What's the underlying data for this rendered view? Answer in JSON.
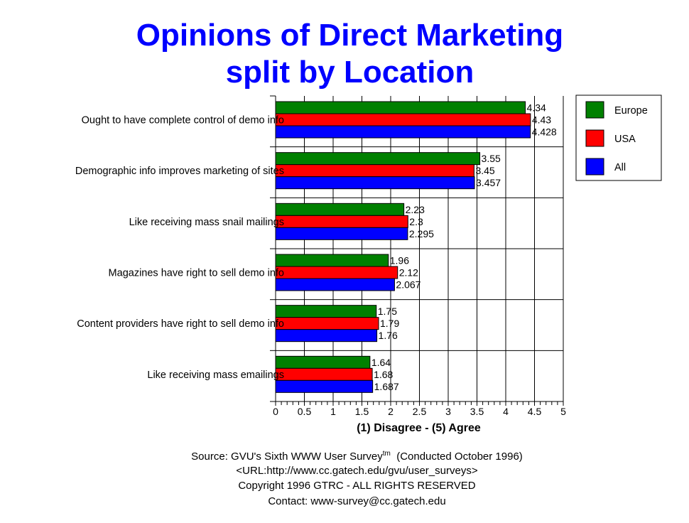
{
  "title_line1": "Opinions of Direct Marketing",
  "title_line2": "split by Location",
  "chart_data": {
    "type": "bar",
    "orientation": "horizontal",
    "categories": [
      "Ought to have complete control of demo info",
      "Demographic info improves marketing of sites",
      "Like receiving mass snail mailings",
      "Magazines have right to sell demo info",
      "Content providers have right to sell demo info",
      "Like receiving mass emailings"
    ],
    "series": [
      {
        "name": "Europe",
        "color": "#008000",
        "values": [
          4.34,
          3.55,
          2.23,
          1.96,
          1.75,
          1.64
        ],
        "labels": [
          "4.34",
          "3.55",
          "2.23",
          "1.96",
          "1.75",
          "1.64"
        ]
      },
      {
        "name": "USA",
        "color": "#ff0000",
        "values": [
          4.43,
          3.45,
          2.3,
          2.12,
          1.79,
          1.68
        ],
        "labels": [
          "4.43",
          "3.45",
          "2.3",
          "2.12",
          "1.79",
          "1.68"
        ]
      },
      {
        "name": "All",
        "color": "#0000ff",
        "values": [
          4.428,
          3.457,
          2.295,
          2.067,
          1.76,
          1.687
        ],
        "labels": [
          "4.428",
          "3.457",
          "2.295",
          "2.067",
          "1.76",
          "1.687"
        ]
      }
    ],
    "xlabel": "(1) Disagree - (5) Agree",
    "xlim": [
      0,
      5
    ],
    "xticks": [
      "0",
      "0.5",
      "1",
      "1.5",
      "2",
      "2.5",
      "3",
      "3.5",
      "4",
      "4.5",
      "5"
    ],
    "grid": true,
    "legend_position": "top-right"
  },
  "footer": {
    "source_prefix": "Source: GVU's Sixth WWW User Survey",
    "source_sup": "tm",
    "source_suffix": "  (Conducted October 1996)",
    "url": "<URL:http://www.cc.gatech.edu/gvu/user_surveys>",
    "copyright": "Copyright 1996 GTRC -  ALL RIGHTS RESERVED",
    "contact": "Contact: www-survey@cc.gatech.edu"
  }
}
